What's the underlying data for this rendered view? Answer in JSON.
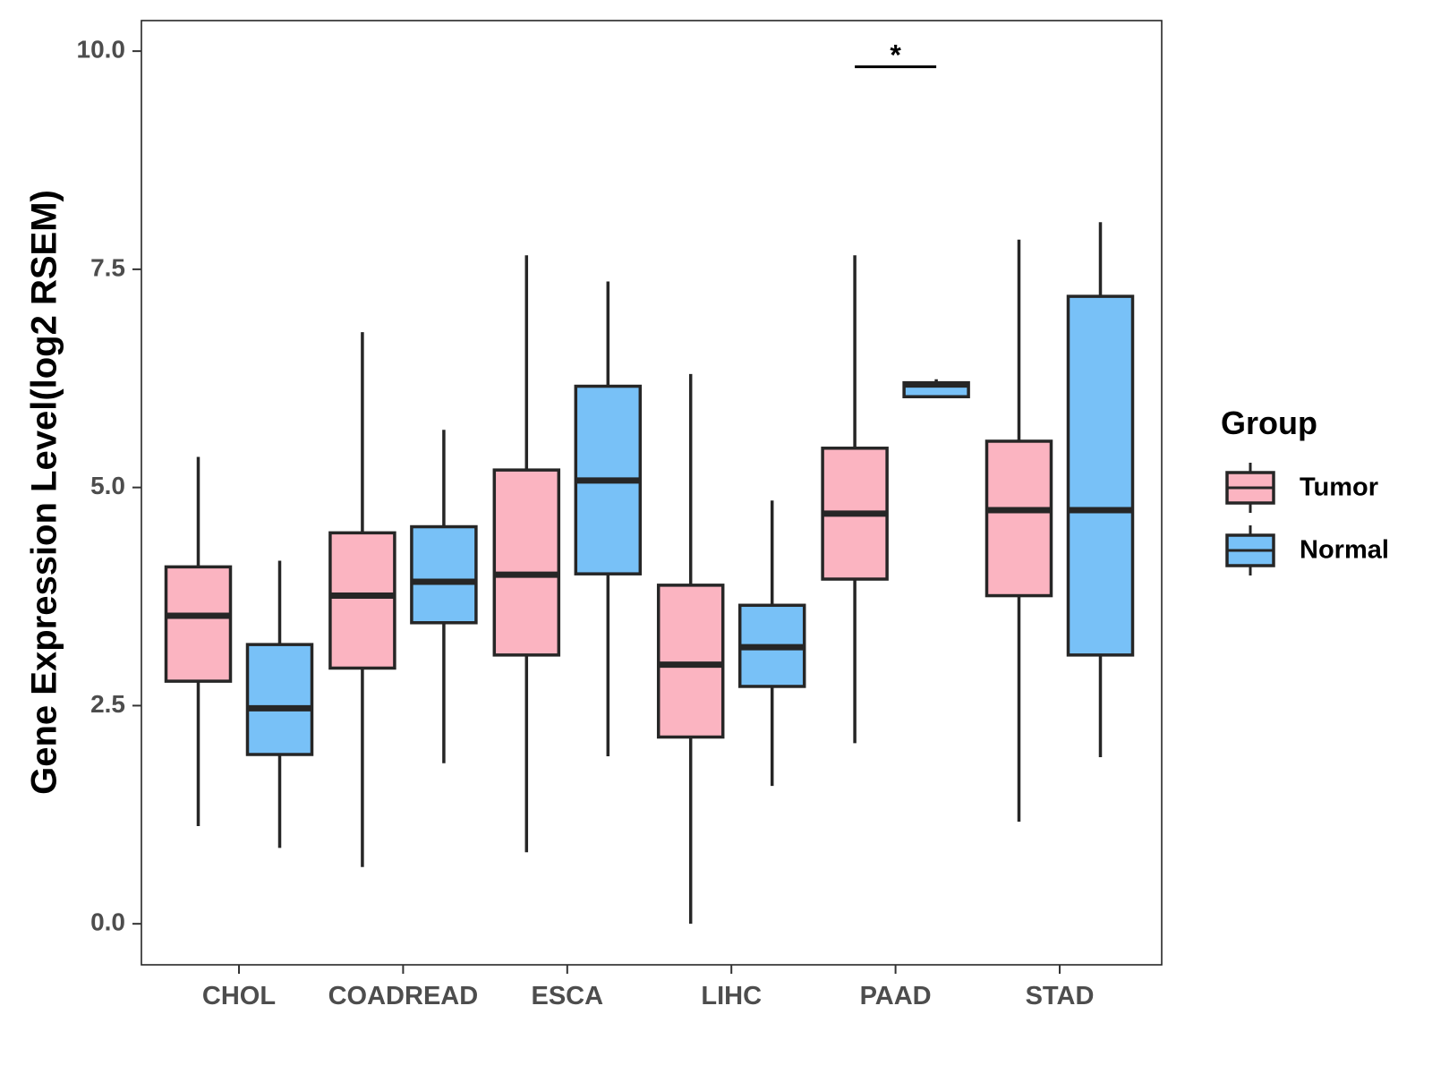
{
  "chart_data": {
    "type": "boxplot",
    "title": "",
    "xlabel": "",
    "ylabel": "Gene Expression Level(log2 RSEM)",
    "ylim": [
      -0.47,
      10.35
    ],
    "yticks": [
      0.0,
      2.5,
      5.0,
      7.5,
      10.0
    ],
    "ytick_labels": [
      "0.0",
      "2.5",
      "5.0",
      "7.5",
      "10.0"
    ],
    "categories": [
      "CHOL",
      "COADREAD",
      "ESCA",
      "LIHC",
      "PAAD",
      "STAD"
    ],
    "legend": {
      "title": "Group",
      "position": "right",
      "entries": [
        "Tumor",
        "Normal"
      ]
    },
    "colors": {
      "Tumor": "#FBB4C1",
      "Normal": "#78C1F7",
      "outline": "#262626"
    },
    "series": [
      {
        "name": "Tumor",
        "boxes": [
          {
            "category": "CHOL",
            "min": 1.12,
            "q1": 2.78,
            "median": 3.53,
            "q3": 4.09,
            "max": 5.35
          },
          {
            "category": "COADREAD",
            "min": 0.65,
            "q1": 2.93,
            "median": 3.76,
            "q3": 4.48,
            "max": 6.78
          },
          {
            "category": "ESCA",
            "min": 0.82,
            "q1": 3.08,
            "median": 4.0,
            "q3": 5.2,
            "max": 7.66
          },
          {
            "category": "LIHC",
            "min": 0.0,
            "q1": 2.14,
            "median": 2.97,
            "q3": 3.88,
            "max": 6.3
          },
          {
            "category": "PAAD",
            "min": 2.07,
            "q1": 3.95,
            "median": 4.7,
            "q3": 5.45,
            "max": 7.66
          },
          {
            "category": "STAD",
            "min": 1.17,
            "q1": 3.76,
            "median": 4.74,
            "q3": 5.53,
            "max": 7.84
          }
        ]
      },
      {
        "name": "Normal",
        "boxes": [
          {
            "category": "CHOL",
            "min": 0.87,
            "q1": 1.94,
            "median": 2.47,
            "q3": 3.2,
            "max": 4.16
          },
          {
            "category": "COADREAD",
            "min": 1.84,
            "q1": 3.45,
            "median": 3.92,
            "q3": 4.55,
            "max": 5.66
          },
          {
            "category": "ESCA",
            "min": 1.92,
            "q1": 4.01,
            "median": 5.08,
            "q3": 6.16,
            "max": 7.36
          },
          {
            "category": "LIHC",
            "min": 1.58,
            "q1": 2.72,
            "median": 3.17,
            "q3": 3.65,
            "max": 4.85
          },
          {
            "category": "PAAD",
            "min": 6.04,
            "q1": 6.04,
            "median": 6.18,
            "q3": 6.2,
            "max": 6.24
          },
          {
            "category": "STAD",
            "min": 1.91,
            "q1": 3.08,
            "median": 4.74,
            "q3": 7.19,
            "max": 8.04
          }
        ]
      }
    ],
    "annotations": [
      {
        "category": "PAAD",
        "text": "*",
        "y": 9.82
      }
    ]
  }
}
